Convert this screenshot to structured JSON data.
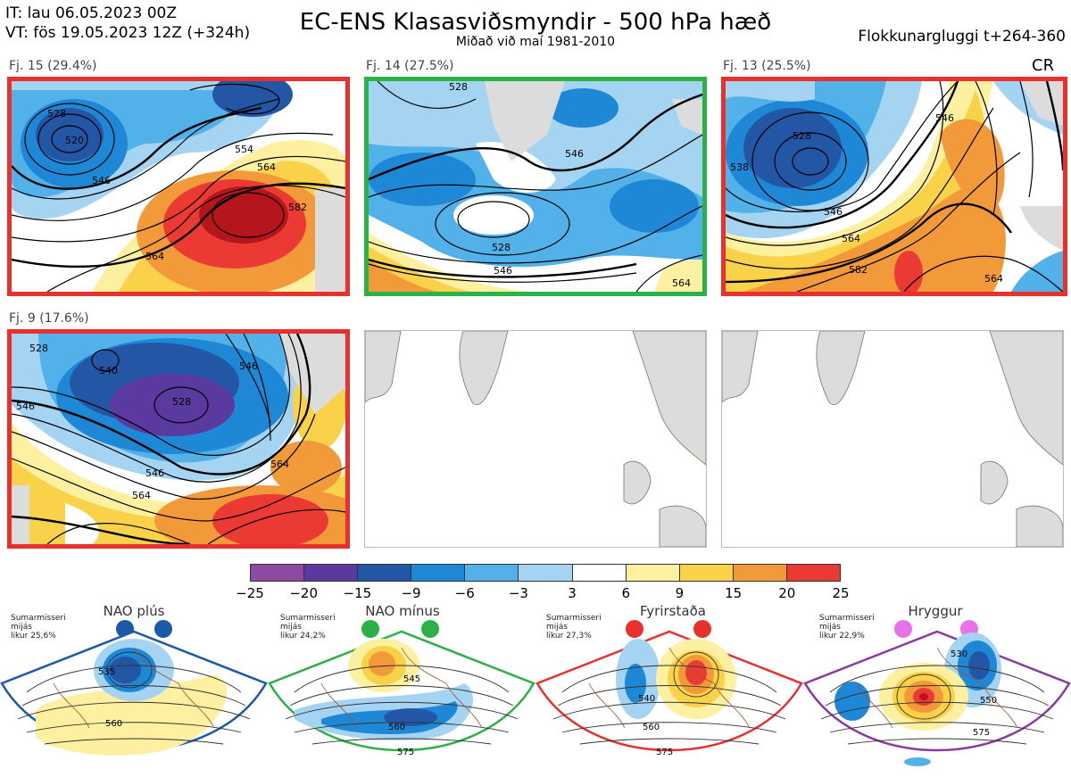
{
  "header": {
    "it_line": "IT: lau 06.05.2023 00Z",
    "vt_line": "VT: fös 19.05.2023 12Z  (+324h)",
    "title": "EC-ENS Klasasviðsmyndir - 500 hPa hæð",
    "subtitle": "Miðað við maí 1981-2010",
    "window": "Flokkunargluggi t+264-360",
    "tag": "CR"
  },
  "panels": [
    {
      "label": "Fj. 15 (29.4%)",
      "border_color": "#e8302d",
      "contours": [
        "528",
        "520",
        "546",
        "554",
        "564",
        "582",
        "564"
      ]
    },
    {
      "label": "Fj. 14 (27.5%)",
      "border_color": "#2bb04a",
      "contours": [
        "528",
        "546",
        "528",
        "546",
        "564"
      ]
    },
    {
      "label": "Fj. 13 (25.5%)",
      "border_color": "#e8302d",
      "contours": [
        "528",
        "538",
        "546",
        "546",
        "564",
        "582",
        "564"
      ]
    },
    {
      "label": "Fj. 9 (17.6%)",
      "border_color": "#e8302d",
      "contours": [
        "528",
        "540",
        "546",
        "546",
        "528",
        "546",
        "564",
        "564"
      ]
    }
  ],
  "colorbar": {
    "ticks": [
      "−25",
      "−20",
      "−15",
      "−9",
      "−6",
      "−3",
      "3",
      "6",
      "9",
      "15",
      "20",
      "25"
    ],
    "colors": [
      "#8e4aa0",
      "#5a3a9e",
      "#2456a6",
      "#1e88d6",
      "#52b1e8",
      "#a4d4f2",
      "#ffffff",
      "#fdf0a0",
      "#fad24a",
      "#f29a3a",
      "#ea3a33",
      "#b5161c"
    ]
  },
  "regimes": [
    {
      "name": "NAO plús",
      "note": [
        "Sumarmisseri",
        "mijás",
        "likur 25,6%"
      ],
      "color": "#1c5aa8",
      "contours": [
        "535",
        "560"
      ]
    },
    {
      "name": "NAO mínus",
      "note": [
        "Sumarmisseri",
        "mijás",
        "likur 24,2%"
      ],
      "color": "#2bb04a",
      "contours": [
        "545",
        "560",
        "575"
      ]
    },
    {
      "name": "Fyrirstaða",
      "note": [
        "Sumarmisseri",
        "mijás",
        "likur 27,3%"
      ],
      "color": "#e8302d",
      "contours": [
        "540",
        "560",
        "575"
      ]
    },
    {
      "name": "Hryggur",
      "note": [
        "Sumarmisseri",
        "mijás",
        "likur 22,9%"
      ],
      "color": "#e873e8",
      "contours": [
        "530",
        "550",
        "575"
      ]
    }
  ]
}
